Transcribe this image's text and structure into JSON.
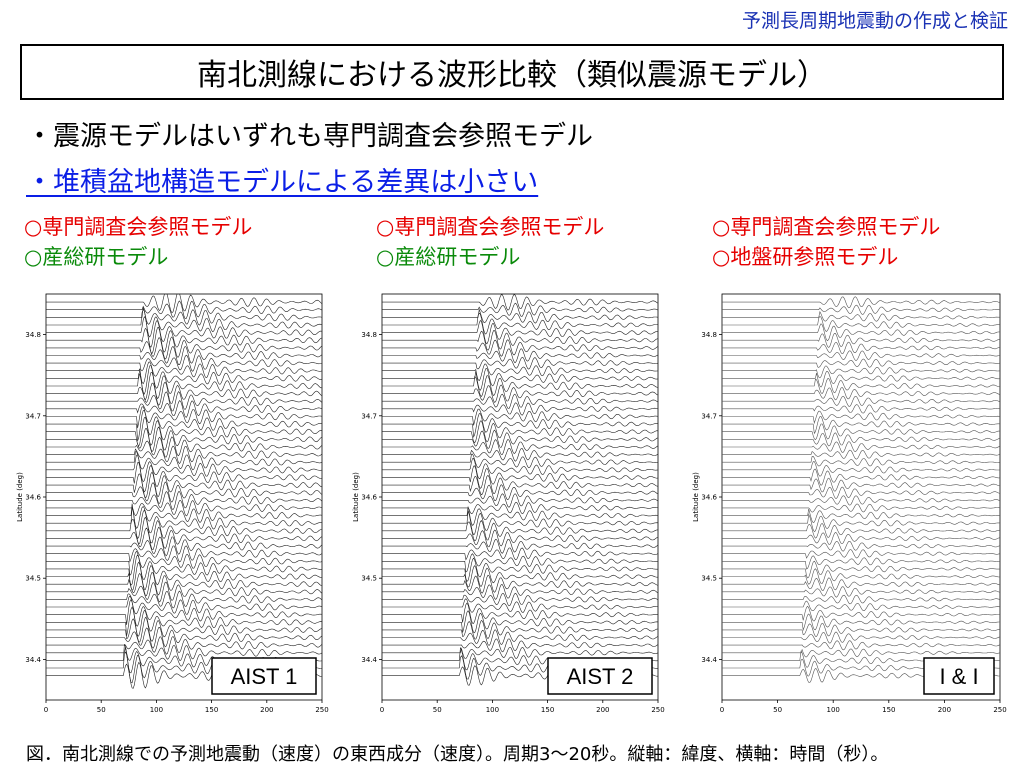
{
  "header": {
    "note": "予測長周期地震動の作成と検証"
  },
  "title": "南北測線における波形比較（類似震源モデル）",
  "bullets": [
    "・震源モデルはいずれも専門調査会参照モデル",
    "・堆積盆地構造モデルによる差異は小さい"
  ],
  "legends": [
    {
      "line1": "○専門調査会参照モデル",
      "line2": "○産総研モデル",
      "line2_color": "#0a8a0a"
    },
    {
      "line1": "○専門調査会参照モデル",
      "line2": "○産総研モデル",
      "line2_color": "#0a8a0a"
    },
    {
      "line1": "○専門調査会参照モデル",
      "line2": "○地盤研参照モデル",
      "line2_color": "#e60000"
    }
  ],
  "chart_data": [
    {
      "type": "line",
      "title": "AIST 1",
      "xlabel": "",
      "ylabel": "Latitude (deg)",
      "x_ticks": [
        "0",
        "50",
        "100",
        "150",
        "200",
        "250"
      ],
      "y_ticks": [
        "34.4",
        "34.5",
        "34.6",
        "34.7",
        "34.8"
      ],
      "xlim": [
        0,
        250
      ],
      "ylim": [
        34.35,
        34.85
      ],
      "grid": false,
      "trace_count": 50,
      "style": "dense"
    },
    {
      "type": "line",
      "title": "AIST 2",
      "xlabel": "",
      "ylabel": "Latitude (deg)",
      "x_ticks": [
        "0",
        "50",
        "100",
        "150",
        "200",
        "250"
      ],
      "y_ticks": [
        "34.4",
        "34.5",
        "34.6",
        "34.7",
        "34.8"
      ],
      "xlim": [
        0,
        250
      ],
      "ylim": [
        34.35,
        34.85
      ],
      "grid": false,
      "trace_count": 50,
      "style": "medium"
    },
    {
      "type": "line",
      "title": "I & I",
      "xlabel": "",
      "ylabel": "Latitude (deg)",
      "x_ticks": [
        "0",
        "50",
        "100",
        "150",
        "200",
        "250"
      ],
      "y_ticks": [
        "34.4",
        "34.5",
        "34.6",
        "34.7",
        "34.8"
      ],
      "xlim": [
        0,
        250
      ],
      "ylim": [
        34.35,
        34.85
      ],
      "grid": false,
      "trace_count": 50,
      "style": "light"
    }
  ],
  "caption": "図．南北測線での予測地震動（速度）の東西成分（速度）。周期3～20秒。縦軸：緯度、横軸：時間（秒）。"
}
